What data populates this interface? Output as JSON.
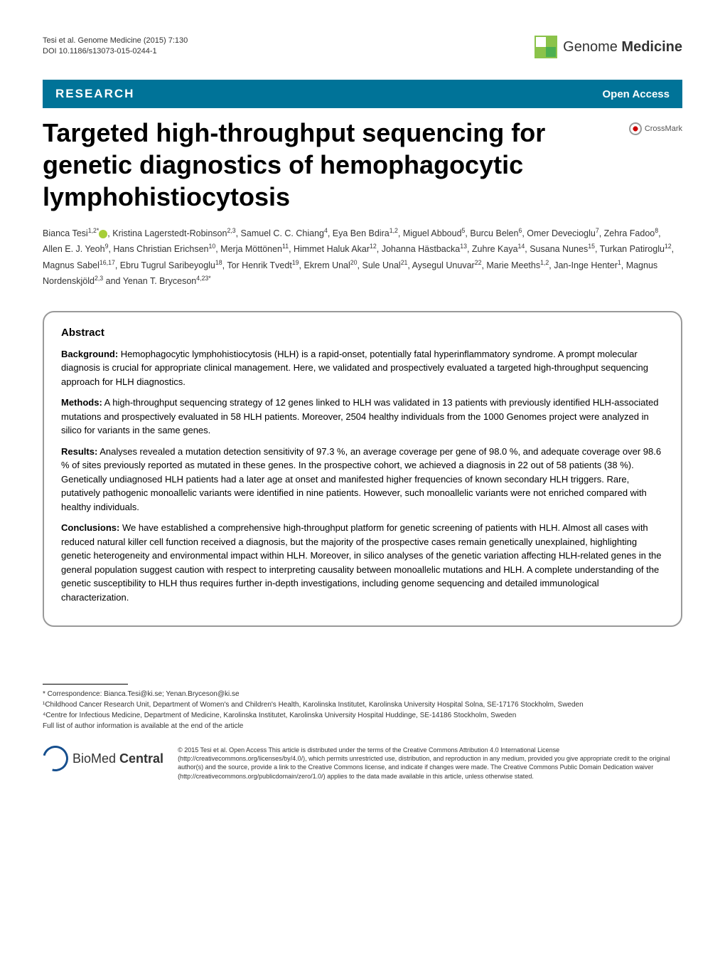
{
  "header": {
    "citation_line1": "Tesi et al. Genome Medicine  (2015) 7:130",
    "citation_line2": "DOI 10.1186/s13073-015-0244-1",
    "journal_name_plain": "Genome",
    "journal_name_bold": "Medicine"
  },
  "banner": {
    "section_type": "RESEARCH",
    "access": "Open Access"
  },
  "crossmark_label": "CrossMark",
  "title": "Targeted high-throughput sequencing for genetic diagnostics of hemophagocytic lymphohistiocytosis",
  "authors_html": "Bianca Tesi<sup>1,2*</sup>, Kristina Lagerstedt-Robinson<sup>2,3</sup>, Samuel C. C. Chiang<sup>4</sup>, Eya Ben Bdira<sup>1,2</sup>, Miguel Abboud<sup>5</sup>, Burcu Belen<sup>6</sup>, Omer Devecioglu<sup>7</sup>, Zehra Fadoo<sup>8</sup>, Allen E. J. Yeoh<sup>9</sup>, Hans Christian Erichsen<sup>10</sup>, Merja Möttönen<sup>11</sup>, Himmet Haluk Akar<sup>12</sup>, Johanna Hästbacka<sup>13</sup>, Zuhre Kaya<sup>14</sup>, Susana Nunes<sup>15</sup>, Turkan Patiroglu<sup>12</sup>, Magnus Sabel<sup>16,17</sup>, Ebru Tugrul Saribeyoglu<sup>18</sup>, Tor Henrik Tvedt<sup>19</sup>, Ekrem Unal<sup>20</sup>, Sule Unal<sup>21</sup>, Aysegul Unuvar<sup>22</sup>, Marie Meeths<sup>1,2</sup>, Jan-Inge Henter<sup>1</sup>, Magnus Nordenskjöld<sup>2,3</sup> and Yenan T. Bryceson<sup>4,23*</sup>",
  "abstract": {
    "heading": "Abstract",
    "sections": [
      {
        "label": "Background:",
        "text": " Hemophagocytic lymphohistiocytosis (HLH) is a rapid-onset, potentially fatal hyperinflammatory syndrome. A prompt molecular diagnosis is crucial for appropriate clinical management. Here, we validated and prospectively evaluated a targeted high-throughput sequencing approach for HLH diagnostics."
      },
      {
        "label": "Methods:",
        "text": " A high-throughput sequencing strategy of 12 genes linked to HLH was validated in 13 patients with previously identified HLH-associated mutations and prospectively evaluated in 58 HLH patients. Moreover, 2504 healthy individuals from the 1000 Genomes project were analyzed in silico for variants in the same genes."
      },
      {
        "label": "Results:",
        "text": " Analyses revealed a mutation detection sensitivity of 97.3 %, an average coverage per gene of 98.0 %, and adequate coverage over 98.6 % of sites previously reported as mutated in these genes. In the prospective cohort, we achieved a diagnosis in 22 out of 58 patients (38 %). Genetically undiagnosed HLH patients had a later age at onset and manifested higher frequencies of known secondary HLH triggers. Rare, putatively pathogenic monoallelic variants were identified in nine patients. However, such monoallelic variants were not enriched compared with healthy individuals."
      },
      {
        "label": "Conclusions:",
        "text": " We have established a comprehensive high-throughput platform for genetic screening of patients with HLH. Almost all cases with reduced natural killer cell function received a diagnosis, but the majority of the prospective cases remain genetically unexplained, highlighting genetic heterogeneity and environmental impact within HLH. Moreover, in silico analyses of the genetic variation affecting HLH-related genes in the general population suggest caution with respect to interpreting causality between monoallelic mutations and HLH. A complete understanding of the genetic susceptibility to HLH thus requires further in-depth investigations, including genome sequencing and detailed immunological characterization."
      }
    ]
  },
  "footer": {
    "correspondence": "* Correspondence: Bianca.Tesi@ki.se; Yenan.Bryceson@ki.se",
    "affil1": "¹Childhood Cancer Research Unit, Department of Women's and Children's Health, Karolinska Institutet, Karolinska University Hospital Solna, SE-17176 Stockholm, Sweden",
    "affil4": "⁴Centre for Infectious Medicine, Department of Medicine, Karolinska Institutet, Karolinska University Hospital Huddinge, SE-14186 Stockholm, Sweden",
    "full_list": "Full list of author information is available at the end of the article"
  },
  "license": {
    "bmc_plain": "BioMed",
    "bmc_bold": "Central",
    "text": "© 2015 Tesi et al. Open Access This article is distributed under the terms of the Creative Commons Attribution 4.0 International License (http://creativecommons.org/licenses/by/4.0/), which permits unrestricted use, distribution, and reproduction in any medium, provided you give appropriate credit to the original author(s) and the source, provide a link to the Creative Commons license, and indicate if changes were made. The Creative Commons Public Domain Dedication waiver (http://creativecommons.org/publicdomain/zero/1.0/) applies to the data made available in this article, unless otherwise stated."
  },
  "colors": {
    "banner_bg": "#007398",
    "journal_green": "#8bc34a",
    "bmc_blue": "#164f8e"
  }
}
